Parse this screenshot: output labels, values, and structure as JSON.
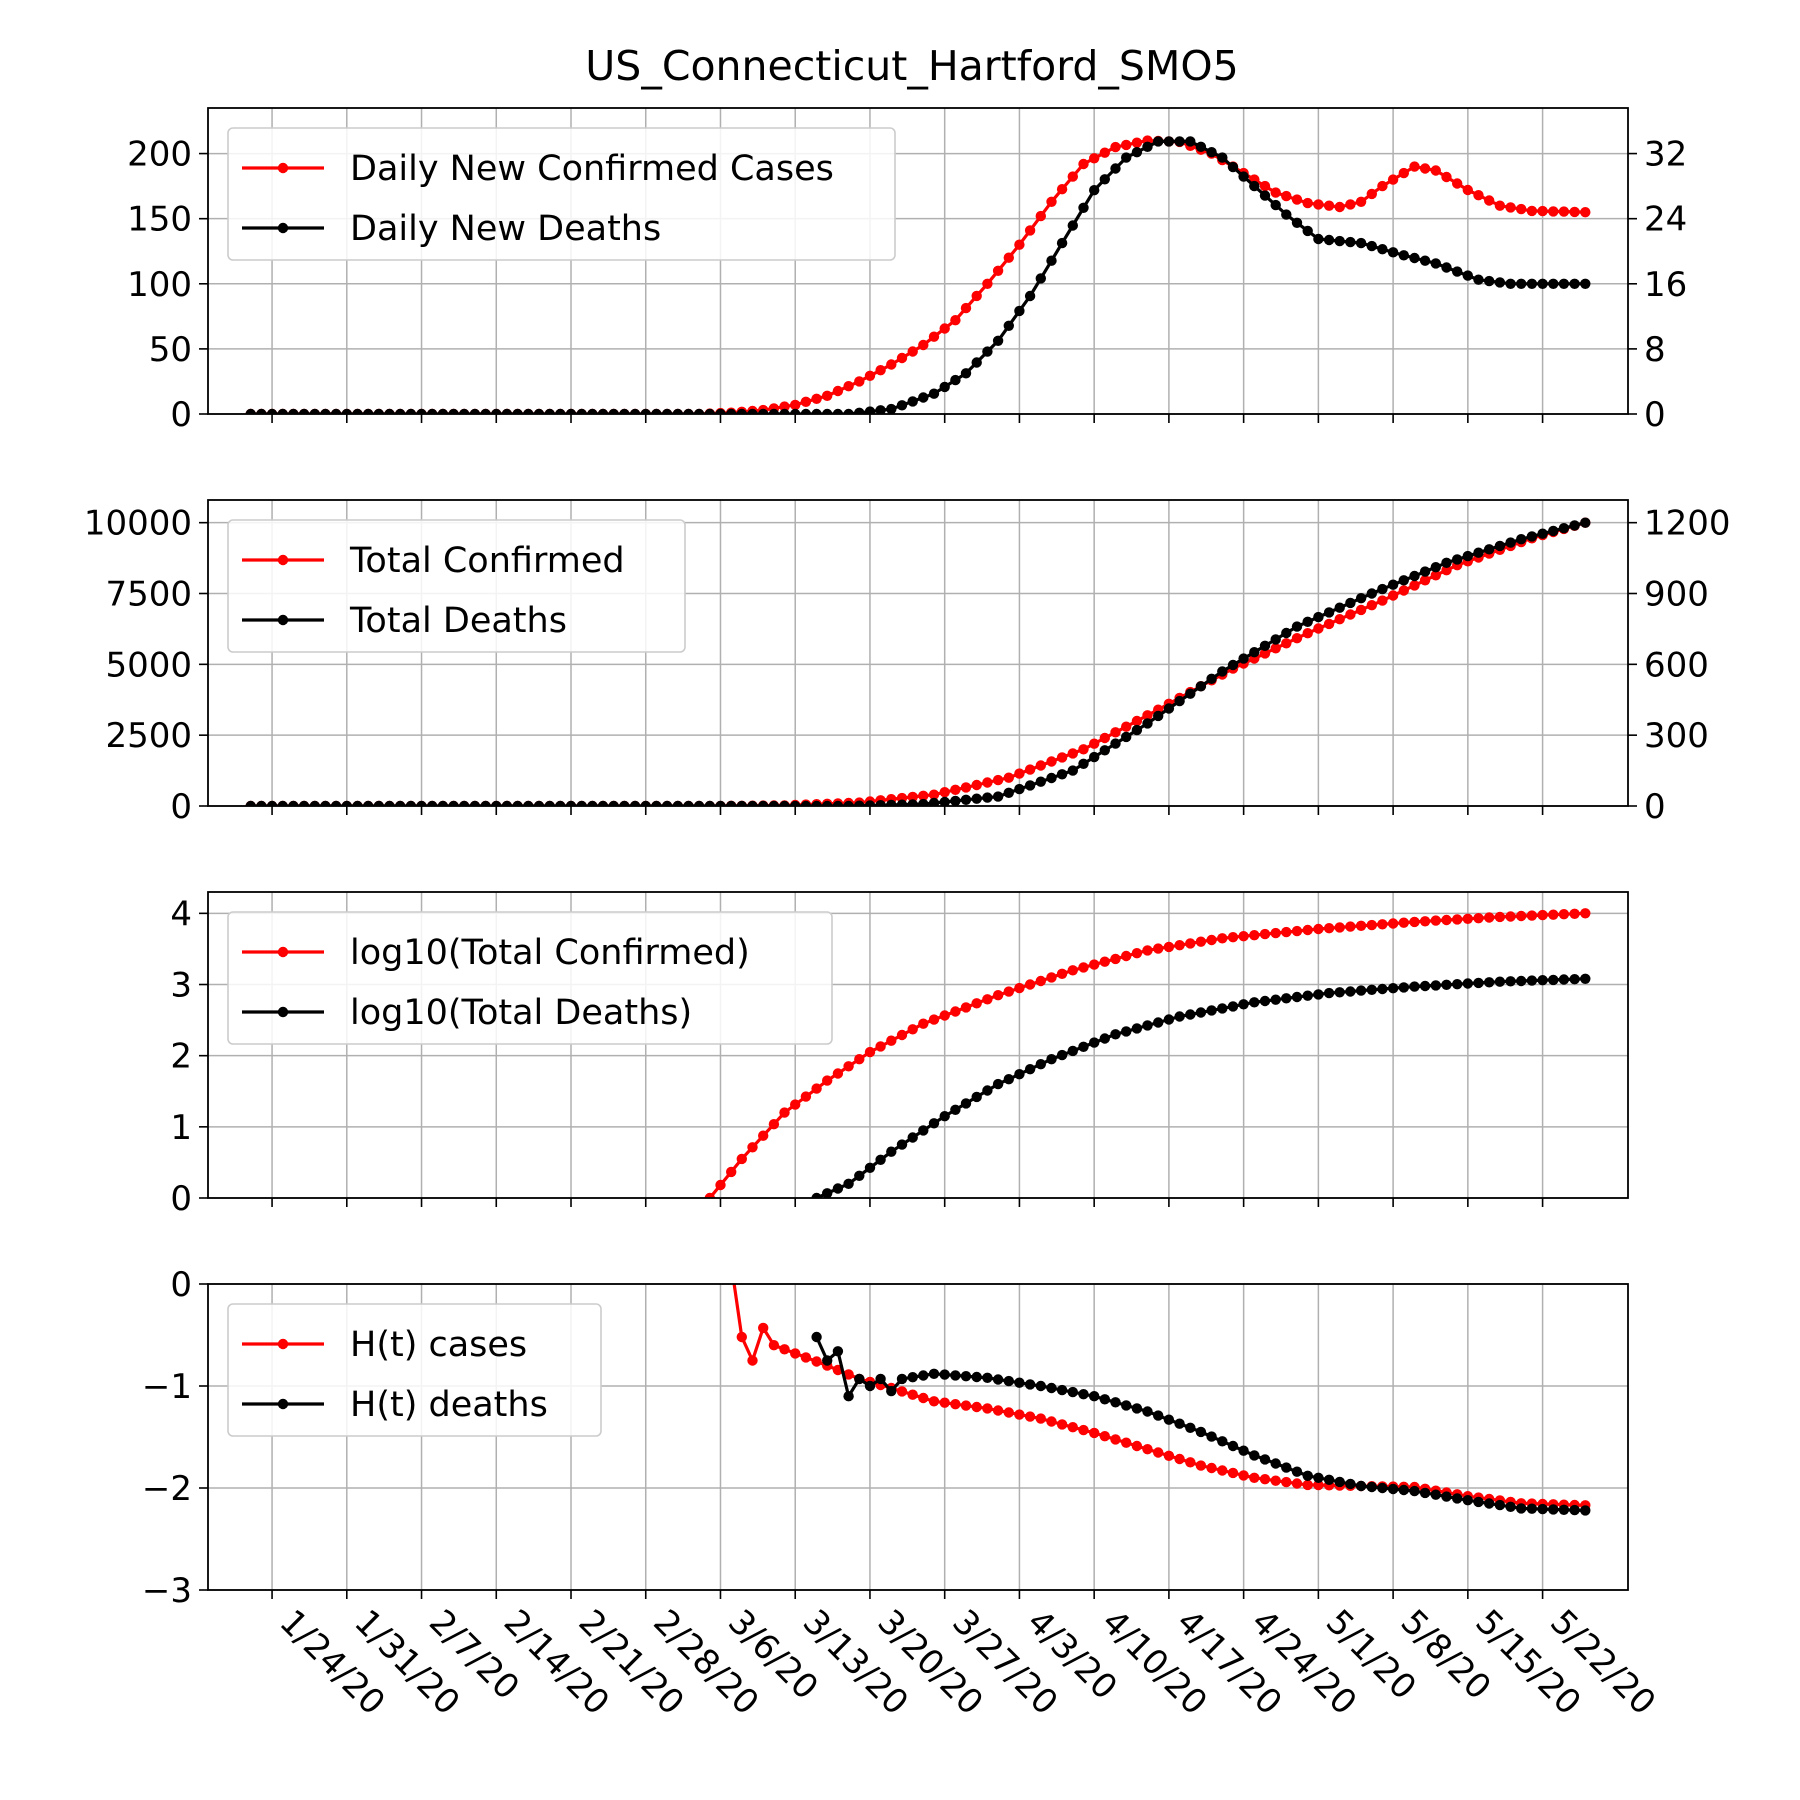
{
  "figure": {
    "title": "US_Connecticut_Hartford_SMO5"
  },
  "x_tick_labels": [
    "1/24/20",
    "1/31/20",
    "2/7/20",
    "2/14/20",
    "2/21/20",
    "2/28/20",
    "3/6/20",
    "3/13/20",
    "3/20/20",
    "3/27/20",
    "4/3/20",
    "4/10/20",
    "4/17/20",
    "4/24/20",
    "5/1/20",
    "5/8/20",
    "5/15/20",
    "5/22/20"
  ],
  "colors": {
    "cases": "#ff0000",
    "deaths": "#000000",
    "grid": "#b0b0b0"
  },
  "chart_data": [
    {
      "type": "line",
      "x_start": "1/22/20",
      "x_end": "5/26/20",
      "ylim_left": [
        0,
        235
      ],
      "ylim_right": [
        0,
        37.6
      ],
      "yticks_left": [
        0,
        50,
        100,
        150,
        200
      ],
      "yticks_right": [
        0,
        8,
        16,
        24,
        32
      ],
      "grid": true,
      "legend_position": "upper-left",
      "series": [
        {
          "name": "Daily New Confirmed Cases",
          "axis": "left",
          "color": "#ff0000",
          "keypoints": [
            [
              "1/22/20",
              0
            ],
            [
              "3/4/20",
              0
            ],
            [
              "3/7/20",
              1
            ],
            [
              "3/10/20",
              3
            ],
            [
              "3/13/20",
              7
            ],
            [
              "3/16/20",
              14
            ],
            [
              "3/19/20",
              25
            ],
            [
              "3/22/20",
              38
            ],
            [
              "3/25/20",
              53
            ],
            [
              "3/28/20",
              72
            ],
            [
              "3/31/20",
              100
            ],
            [
              "4/3/20",
              130
            ],
            [
              "4/6/20",
              163
            ],
            [
              "4/9/20",
              192
            ],
            [
              "4/12/20",
              205
            ],
            [
              "4/15/20",
              210
            ],
            [
              "4/18/20",
              209
            ],
            [
              "4/21/20",
              200
            ],
            [
              "4/24/20",
              185
            ],
            [
              "4/27/20",
              170
            ],
            [
              "4/30/20",
              162
            ],
            [
              "5/3/20",
              159
            ],
            [
              "5/5/20",
              163
            ],
            [
              "5/7/20",
              175
            ],
            [
              "5/10/20",
              190
            ],
            [
              "5/12/20",
              187
            ],
            [
              "5/15/20",
              172
            ],
            [
              "5/18/20",
              160
            ],
            [
              "5/21/20",
              156
            ],
            [
              "5/26/20",
              155
            ]
          ]
        },
        {
          "name": "Daily New Deaths",
          "axis": "right",
          "color": "#000000",
          "keypoints": [
            [
              "1/22/20",
              0
            ],
            [
              "3/18/20",
              0
            ],
            [
              "3/22/20",
              0.6
            ],
            [
              "3/26/20",
              2.5
            ],
            [
              "3/29/20",
              5
            ],
            [
              "4/1/20",
              9
            ],
            [
              "4/4/20",
              14.5
            ],
            [
              "4/7/20",
              21
            ],
            [
              "4/10/20",
              27.5
            ],
            [
              "4/13/20",
              31.5
            ],
            [
              "4/16/20",
              33.5
            ],
            [
              "4/19/20",
              33.5
            ],
            [
              "4/22/20",
              31.5
            ],
            [
              "4/25/20",
              28
            ],
            [
              "4/28/20",
              24.5
            ],
            [
              "5/1/20",
              21.5
            ],
            [
              "5/5/20",
              21
            ],
            [
              "5/9/20",
              19.5
            ],
            [
              "5/12/20",
              18.5
            ],
            [
              "5/16/20",
              16.5
            ],
            [
              "5/19/20",
              16
            ],
            [
              "5/26/20",
              16
            ]
          ]
        }
      ]
    },
    {
      "type": "line",
      "x_start": "1/22/20",
      "x_end": "5/26/20",
      "ylim_left": [
        0,
        10800
      ],
      "ylim_right": [
        0,
        1296
      ],
      "yticks_left": [
        0,
        2500,
        5000,
        7500,
        10000
      ],
      "yticks_right": [
        0,
        300,
        600,
        900,
        1200
      ],
      "grid": true,
      "legend_position": "upper-left",
      "series": [
        {
          "name": "Total Confirmed",
          "axis": "left",
          "color": "#ff0000",
          "keypoints": [
            [
              "1/22/20",
              0
            ],
            [
              "3/5/20",
              0
            ],
            [
              "3/12/20",
              20
            ],
            [
              "3/19/20",
              120
            ],
            [
              "3/26/20",
              400
            ],
            [
              "4/2/20",
              1000
            ],
            [
              "4/9/20",
              2000
            ],
            [
              "4/16/20",
              3400
            ],
            [
              "4/23/20",
              4850
            ],
            [
              "4/30/20",
              6100
            ],
            [
              "5/7/20",
              7250
            ],
            [
              "5/14/20",
              8500
            ],
            [
              "5/21/20",
              9450
            ],
            [
              "5/26/20",
              10000
            ]
          ]
        },
        {
          "name": "Total Deaths",
          "axis": "right",
          "color": "#000000",
          "keypoints": [
            [
              "1/22/20",
              0
            ],
            [
              "3/18/20",
              0
            ],
            [
              "3/25/20",
              8
            ],
            [
              "4/1/20",
              40
            ],
            [
              "4/8/20",
              150
            ],
            [
              "4/15/20",
              350
            ],
            [
              "4/22/20",
              570
            ],
            [
              "4/29/20",
              760
            ],
            [
              "5/6/20",
              900
            ],
            [
              "5/13/20",
              1030
            ],
            [
              "5/20/20",
              1130
            ],
            [
              "5/26/20",
              1200
            ]
          ]
        }
      ]
    },
    {
      "type": "line",
      "x_start": "1/22/20",
      "x_end": "5/26/20",
      "ylim_left": [
        0,
        4.3
      ],
      "yticks_left": [
        0,
        1,
        2,
        3,
        4
      ],
      "grid": true,
      "legend_position": "upper-left",
      "series": [
        {
          "name": "log10(Total Confirmed)",
          "axis": "left",
          "color": "#ff0000",
          "keypoints": [
            [
              "3/5/20",
              0
            ],
            [
              "3/8/20",
              0.55
            ],
            [
              "3/12/20",
              1.2
            ],
            [
              "3/16/20",
              1.65
            ],
            [
              "3/20/20",
              2.05
            ],
            [
              "3/25/20",
              2.45
            ],
            [
              "4/1/20",
              2.85
            ],
            [
              "4/8/20",
              3.2
            ],
            [
              "4/15/20",
              3.48
            ],
            [
              "4/22/20",
              3.65
            ],
            [
              "5/1/20",
              3.78
            ],
            [
              "5/10/20",
              3.88
            ],
            [
              "5/18/20",
              3.95
            ],
            [
              "5/26/20",
              4.0
            ]
          ]
        },
        {
          "name": "log10(Total Deaths)",
          "axis": "left",
          "color": "#000000",
          "keypoints": [
            [
              "3/15/20",
              0
            ],
            [
              "3/18/20",
              0.2
            ],
            [
              "3/22/20",
              0.65
            ],
            [
              "3/27/20",
              1.15
            ],
            [
              "4/1/20",
              1.6
            ],
            [
              "4/6/20",
              1.95
            ],
            [
              "4/12/20",
              2.3
            ],
            [
              "4/18/20",
              2.55
            ],
            [
              "4/25/20",
              2.75
            ],
            [
              "5/2/20",
              2.88
            ],
            [
              "5/10/20",
              2.97
            ],
            [
              "5/18/20",
              3.04
            ],
            [
              "5/26/20",
              3.08
            ]
          ]
        }
      ]
    },
    {
      "type": "line",
      "x_start": "1/22/20",
      "x_end": "5/26/20",
      "ylim_left": [
        -3,
        0
      ],
      "yticks_left": [
        -3,
        -2,
        -1,
        0
      ],
      "grid": true,
      "legend_position": "upper-left",
      "series": [
        {
          "name": "H(t) cases",
          "axis": "left",
          "color": "#ff0000",
          "keypoints": [
            [
              "3/7/20",
              0.2
            ],
            [
              "3/8/20",
              -0.52
            ],
            [
              "3/9/20",
              -0.75
            ],
            [
              "3/10/20",
              -0.43
            ],
            [
              "3/11/20",
              -0.6
            ],
            [
              "3/13/20",
              -0.68
            ],
            [
              "3/16/20",
              -0.8
            ],
            [
              "3/19/20",
              -0.93
            ],
            [
              "3/22/20",
              -1.02
            ],
            [
              "3/26/20",
              -1.15
            ],
            [
              "3/31/20",
              -1.22
            ],
            [
              "4/5/20",
              -1.32
            ],
            [
              "4/10/20",
              -1.46
            ],
            [
              "4/15/20",
              -1.62
            ],
            [
              "4/20/20",
              -1.78
            ],
            [
              "4/25/20",
              -1.9
            ],
            [
              "4/30/20",
              -1.97
            ],
            [
              "5/5/20",
              -1.98
            ],
            [
              "5/10/20",
              -1.99
            ],
            [
              "5/15/20",
              -2.08
            ],
            [
              "5/20/20",
              -2.15
            ],
            [
              "5/26/20",
              -2.17
            ]
          ]
        },
        {
          "name": "H(t) deaths",
          "axis": "left",
          "color": "#000000",
          "keypoints": [
            [
              "3/15/20",
              -0.52
            ],
            [
              "3/16/20",
              -0.75
            ],
            [
              "3/17/20",
              -0.66
            ],
            [
              "3/18/20",
              -1.1
            ],
            [
              "3/19/20",
              -0.93
            ],
            [
              "3/20/20",
              -1.0
            ],
            [
              "3/21/20",
              -0.93
            ],
            [
              "3/22/20",
              -1.05
            ],
            [
              "3/23/20",
              -0.93
            ],
            [
              "3/26/20",
              -0.88
            ],
            [
              "3/31/20",
              -0.92
            ],
            [
              "4/5/20",
              -1.0
            ],
            [
              "4/10/20",
              -1.1
            ],
            [
              "4/15/20",
              -1.25
            ],
            [
              "4/20/20",
              -1.45
            ],
            [
              "4/25/20",
              -1.68
            ],
            [
              "4/30/20",
              -1.88
            ],
            [
              "5/5/20",
              -1.98
            ],
            [
              "5/10/20",
              -2.03
            ],
            [
              "5/15/20",
              -2.12
            ],
            [
              "5/20/20",
              -2.2
            ],
            [
              "5/26/20",
              -2.22
            ]
          ]
        }
      ]
    }
  ]
}
